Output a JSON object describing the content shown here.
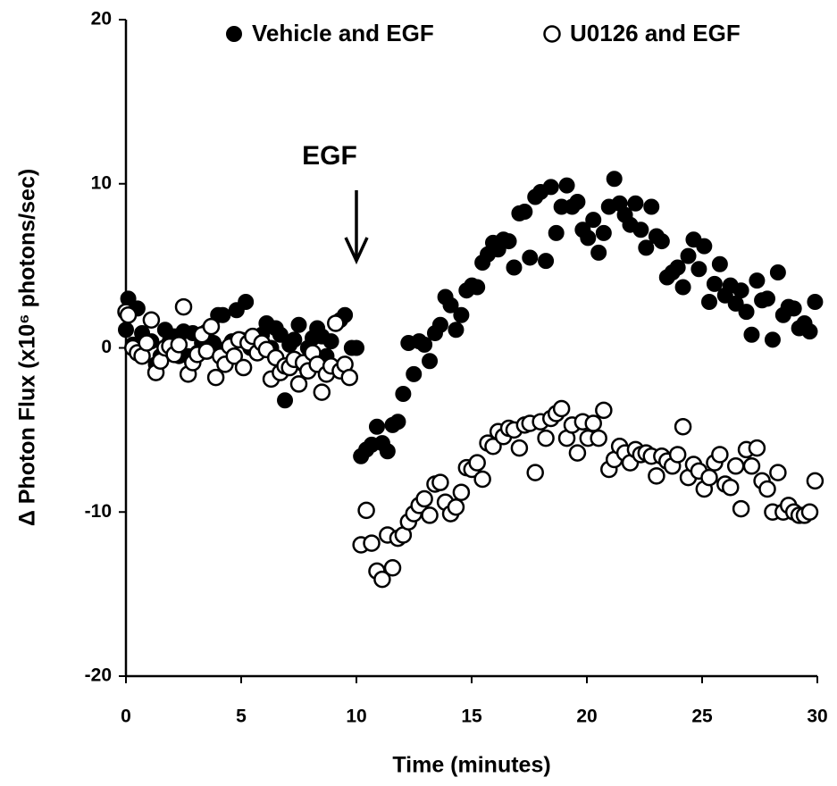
{
  "chart_data": {
    "type": "scatter",
    "xlabel": "Time (minutes)",
    "ylabel": "Δ Photon Flux (x10⁶ photons/sec)",
    "annotation": {
      "text": "EGF",
      "x": 10
    },
    "xlim": [
      0,
      30
    ],
    "xticks": [
      0,
      5,
      10,
      15,
      20,
      25,
      30
    ],
    "ylim": [
      -20,
      20
    ],
    "yticks": [
      -20,
      -10,
      0,
      10,
      20
    ],
    "legend": "top",
    "series": [
      {
        "name": "Vehicle and EGF",
        "color": "#000000",
        "filled": true,
        "x": [
          0,
          0.1,
          0.3,
          0.5,
          0.7,
          0.9,
          1.1,
          1.3,
          1.5,
          1.7,
          1.9,
          2.1,
          2.3,
          2.5,
          2.7,
          2.9,
          3.1,
          3.3,
          3.5,
          3.8,
          4.0,
          4.2,
          4.4,
          4.6,
          4.8,
          5.0,
          5.2,
          5.4,
          5.6,
          5.9,
          6.1,
          6.3,
          6.5,
          6.7,
          6.9,
          7.1,
          7.3,
          7.5,
          7.7,
          7.9,
          8.1,
          8.3,
          8.5,
          8.7,
          8.9,
          9.1,
          9.3,
          9.5,
          9.8,
          10.0,
          10.2,
          10.43,
          10.66,
          10.89,
          11.12,
          11.35,
          11.57,
          11.8,
          12.03,
          12.26,
          12.49,
          12.72,
          12.95,
          13.18,
          13.41,
          13.64,
          13.86,
          14.09,
          14.32,
          14.55,
          14.78,
          15.01,
          15.24,
          15.47,
          15.7,
          15.93,
          16.15,
          16.38,
          16.61,
          16.84,
          17.07,
          17.3,
          17.53,
          17.76,
          17.99,
          18.22,
          18.44,
          18.67,
          18.9,
          19.13,
          19.36,
          19.59,
          19.82,
          20.05,
          20.28,
          20.51,
          20.73,
          20.96,
          21.19,
          21.42,
          21.65,
          21.88,
          22.11,
          22.34,
          22.57,
          22.8,
          23.02,
          23.25,
          23.48,
          23.71,
          23.94,
          24.17,
          24.4,
          24.63,
          24.86,
          25.09,
          25.31,
          25.54,
          25.77,
          26.0,
          26.23,
          26.46,
          26.69,
          26.92,
          27.15,
          27.38,
          27.6,
          27.83,
          28.06,
          28.29,
          28.52,
          28.75,
          28.98,
          29.21,
          29.44,
          29.67,
          29.9
        ],
        "values": [
          1.1,
          3.0,
          0.2,
          2.4,
          0.9,
          0.3,
          0.4,
          -1.0,
          -0.5,
          1.1,
          0.4,
          0.7,
          -0.5,
          1.0,
          -0.5,
          0.9,
          -0.3,
          0.3,
          1.0,
          0.3,
          2.0,
          2.0,
          0.0,
          0.4,
          2.3,
          0.5,
          2.8,
          0.0,
          0.2,
          0.8,
          1.5,
          0.0,
          1.2,
          0.8,
          -3.2,
          0.2,
          0.5,
          1.4,
          -1.0,
          0.0,
          0.6,
          1.2,
          0.7,
          -0.5,
          0.4,
          1.5,
          1.7,
          2.0,
          0.0,
          0.0,
          -6.6,
          -6.2,
          -5.9,
          -4.8,
          -5.8,
          -6.3,
          -4.7,
          -4.5,
          -2.8,
          0.3,
          -1.6,
          0.4,
          0.2,
          -0.8,
          0.9,
          1.4,
          3.1,
          2.6,
          1.1,
          2.0,
          3.5,
          3.8,
          3.7,
          5.2,
          5.7,
          6.4,
          6.0,
          6.6,
          6.5,
          4.9,
          8.2,
          8.3,
          5.5,
          9.2,
          9.5,
          5.3,
          9.8,
          7.0,
          8.6,
          9.9,
          8.6,
          8.9,
          7.2,
          6.7,
          7.8,
          5.8,
          7.0,
          8.6,
          10.3,
          8.8,
          8.1,
          7.5,
          8.8,
          7.2,
          6.1,
          8.6,
          6.8,
          6.5,
          4.3,
          4.6,
          4.9,
          3.7,
          5.6,
          6.6,
          4.8,
          6.2,
          2.8,
          3.9,
          5.1,
          3.2,
          3.8,
          2.7,
          3.5,
          2.2,
          0.8,
          4.1,
          2.9,
          3.0,
          0.5,
          4.6,
          2.0,
          2.5,
          2.4,
          1.2,
          1.5,
          1.0,
          2.8
        ]
      },
      {
        "name": "U0126 and EGF",
        "color": "#000000",
        "filled": false,
        "x": [
          0,
          0.1,
          0.3,
          0.5,
          0.7,
          0.9,
          1.1,
          1.3,
          1.5,
          1.7,
          1.9,
          2.1,
          2.3,
          2.5,
          2.7,
          2.9,
          3.1,
          3.3,
          3.5,
          3.7,
          3.9,
          4.1,
          4.3,
          4.5,
          4.7,
          4.9,
          5.1,
          5.3,
          5.5,
          5.7,
          5.9,
          6.1,
          6.3,
          6.5,
          6.7,
          6.9,
          7.1,
          7.3,
          7.5,
          7.7,
          7.9,
          8.1,
          8.3,
          8.5,
          8.7,
          8.9,
          9.1,
          9.3,
          9.5,
          9.7,
          10.2,
          10.43,
          10.66,
          10.89,
          11.12,
          11.35,
          11.57,
          11.8,
          12.03,
          12.26,
          12.49,
          12.72,
          12.95,
          13.18,
          13.41,
          13.64,
          13.86,
          14.09,
          14.32,
          14.55,
          14.78,
          15.01,
          15.24,
          15.47,
          15.7,
          15.93,
          16.15,
          16.38,
          16.61,
          16.84,
          17.07,
          17.3,
          17.53,
          17.76,
          17.99,
          18.22,
          18.44,
          18.67,
          18.9,
          19.13,
          19.36,
          19.59,
          19.82,
          20.05,
          20.28,
          20.51,
          20.73,
          20.96,
          21.19,
          21.42,
          21.65,
          21.88,
          22.11,
          22.34,
          22.57,
          22.8,
          23.02,
          23.25,
          23.48,
          23.71,
          23.94,
          24.17,
          24.4,
          24.63,
          24.86,
          25.09,
          25.31,
          25.54,
          25.77,
          26.0,
          26.23,
          26.46,
          26.69,
          26.92,
          27.15,
          27.38,
          27.6,
          27.83,
          28.06,
          28.29,
          28.52,
          28.75,
          28.98,
          29.21,
          29.44,
          29.67,
          29.9
        ],
        "values": [
          2.2,
          2.0,
          0.0,
          -0.3,
          -0.5,
          0.3,
          1.7,
          -1.5,
          -0.8,
          0.0,
          0.1,
          -0.4,
          0.2,
          2.5,
          -1.6,
          -0.9,
          -0.4,
          0.8,
          -0.2,
          1.3,
          -1.8,
          -0.5,
          -1.0,
          0.1,
          -0.5,
          0.5,
          -1.2,
          0.3,
          0.7,
          -0.3,
          0.3,
          -0.1,
          -1.9,
          -0.6,
          -1.5,
          -1.1,
          -1.2,
          -0.7,
          -2.2,
          -0.9,
          -1.4,
          -0.3,
          -1.0,
          -2.7,
          -1.6,
          -1.1,
          1.5,
          -1.4,
          -1.0,
          -1.8,
          -12.0,
          -9.9,
          -11.9,
          -13.6,
          -14.1,
          -11.4,
          -13.4,
          -11.6,
          -11.4,
          -10.6,
          -10.1,
          -9.6,
          -9.2,
          -10.2,
          -8.3,
          -8.2,
          -9.4,
          -10.1,
          -9.7,
          -8.8,
          -7.3,
          -7.4,
          -7.0,
          -8.0,
          -5.8,
          -6.0,
          -5.1,
          -5.4,
          -4.9,
          -5.0,
          -6.1,
          -4.7,
          -4.6,
          -7.6,
          -4.5,
          -5.5,
          -4.3,
          -4.0,
          -3.7,
          -5.5,
          -4.7,
          -6.4,
          -4.5,
          -5.5,
          -4.6,
          -5.5,
          -3.8,
          -7.4,
          -6.8,
          -6.0,
          -6.4,
          -7.0,
          -6.2,
          -6.5,
          -6.4,
          -6.6,
          -7.8,
          -6.6,
          -6.9,
          -7.2,
          -6.5,
          -4.8,
          -7.9,
          -7.1,
          -7.5,
          -8.6,
          -7.9,
          -7.0,
          -6.5,
          -8.3,
          -8.5,
          -7.2,
          -9.8,
          -6.2,
          -7.2,
          -6.1,
          -8.1,
          -8.6,
          -10.0,
          -7.6,
          -10.0,
          -9.6,
          -10.0,
          -10.2,
          -10.2,
          -10.0,
          -8.1
        ]
      }
    ]
  }
}
